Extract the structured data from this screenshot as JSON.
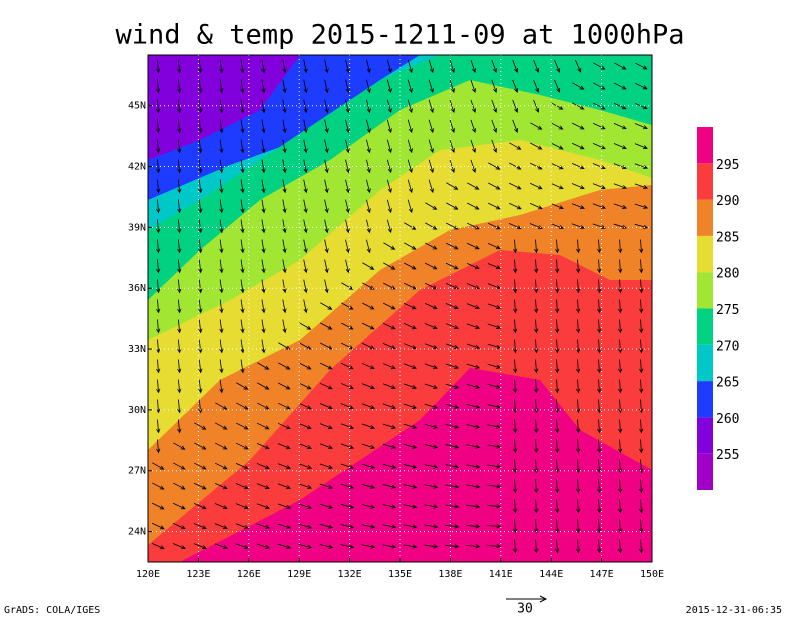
{
  "title": "wind & temp 2015-1211-09 at 1000hPa",
  "map": {
    "lon_range": [
      120,
      150
    ],
    "lat_range": [
      22.5,
      47.5
    ],
    "lon_ticks": [
      {
        "value": 120,
        "label": "120E"
      },
      {
        "value": 123,
        "label": "123E"
      },
      {
        "value": 126,
        "label": "126E"
      },
      {
        "value": 129,
        "label": "129E"
      },
      {
        "value": 132,
        "label": "132E"
      },
      {
        "value": 135,
        "label": "135E"
      },
      {
        "value": 138,
        "label": "138E"
      },
      {
        "value": 141,
        "label": "141E"
      },
      {
        "value": 144,
        "label": "144E"
      },
      {
        "value": 147,
        "label": "147E"
      },
      {
        "value": 150,
        "label": "150E"
      }
    ],
    "lat_ticks": [
      {
        "value": 24,
        "label": "24N"
      },
      {
        "value": 27,
        "label": "27N"
      },
      {
        "value": 30,
        "label": "30N"
      },
      {
        "value": 33,
        "label": "33N"
      },
      {
        "value": 36,
        "label": "36N"
      },
      {
        "value": 39,
        "label": "39N"
      },
      {
        "value": 42,
        "label": "42N"
      },
      {
        "value": 45,
        "label": "45N"
      }
    ]
  },
  "colorbar": {
    "levels": [
      255,
      260,
      265,
      270,
      275,
      280,
      285,
      290,
      295
    ],
    "colors": [
      "#a000c8",
      "#8200dc",
      "#1e3cff",
      "#00c8c8",
      "#00d282",
      "#a0e632",
      "#e6dc32",
      "#f08228",
      "#fa3c3c",
      "#f00082"
    ]
  },
  "vector_scale": 30,
  "footer": {
    "left": "GrADS: COLA/IGES",
    "right": "2015-12-31-06:35"
  }
}
